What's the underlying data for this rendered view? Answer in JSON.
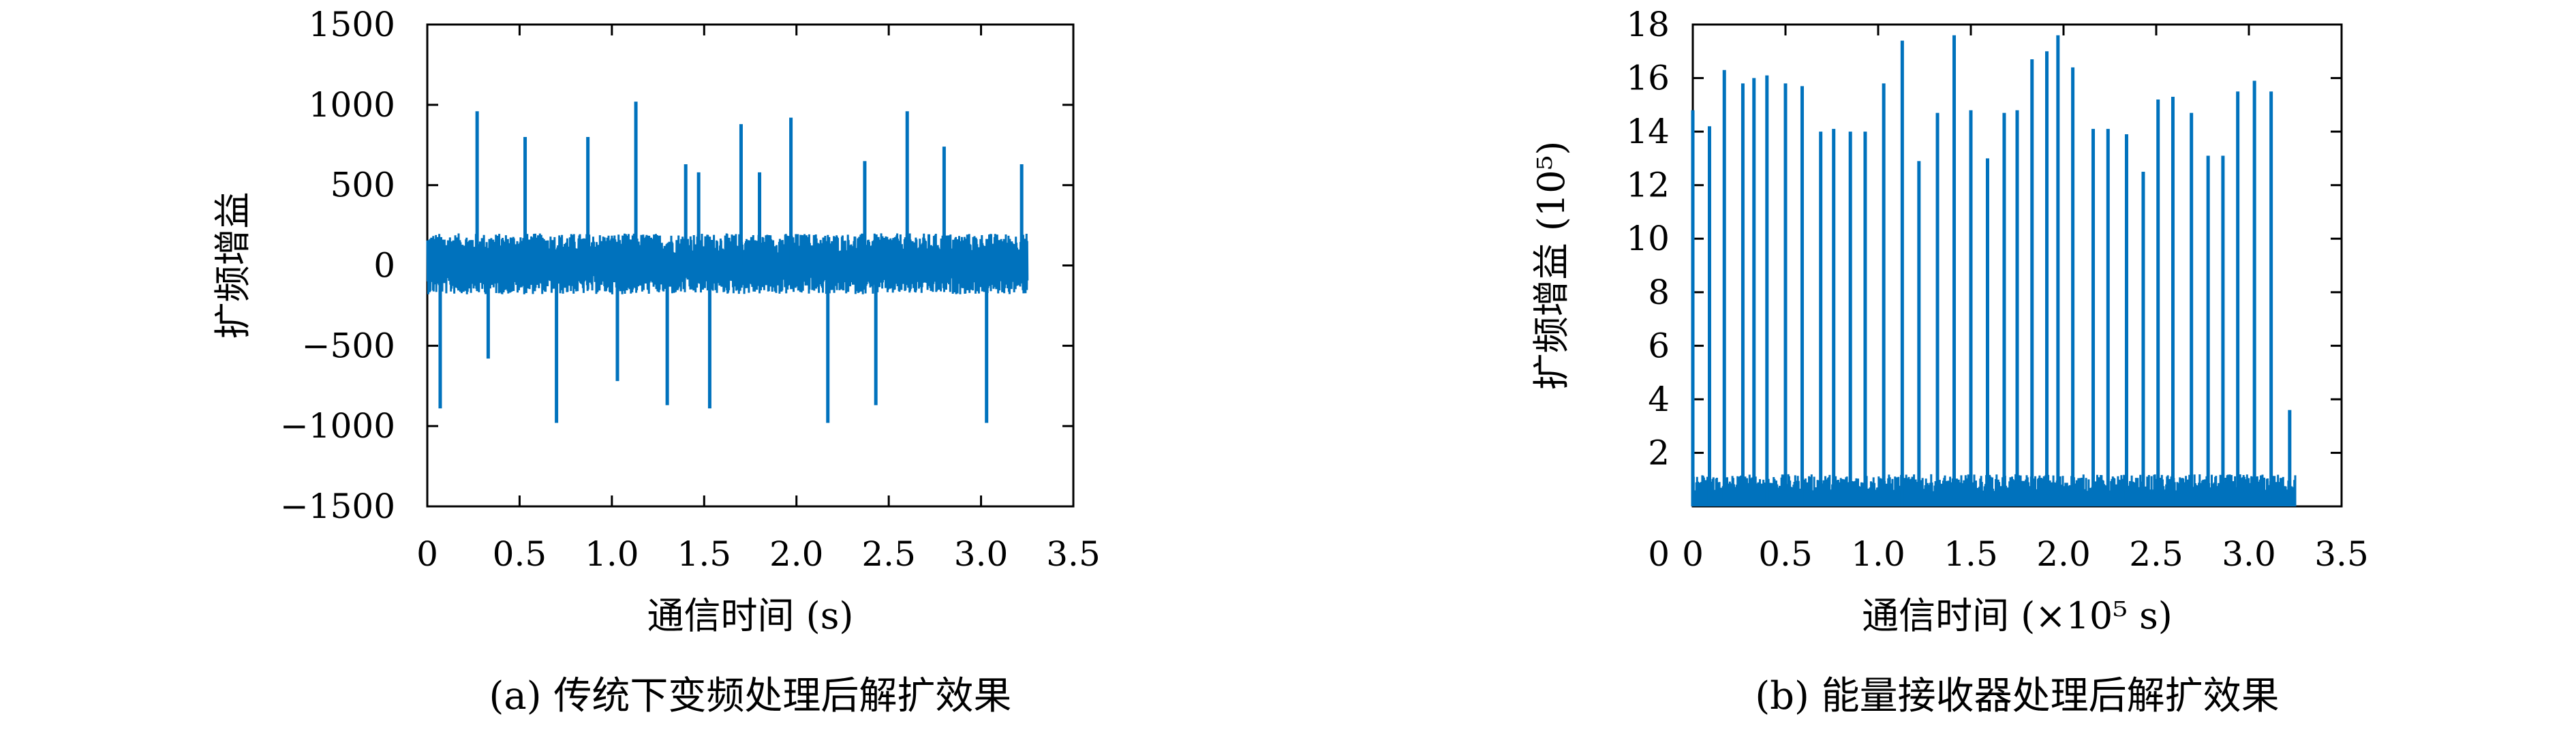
{
  "chart_data": [
    {
      "type": "line",
      "caption": "(a) 传统下变频处理后解扩效果",
      "xlabel": "通信时间 (s)",
      "ylabel": "扩频增益",
      "xlim": [
        0,
        3.5
      ],
      "ylim": [
        -1500,
        1500
      ],
      "xticks": [
        "0",
        "0.5",
        "1.0",
        "1.5",
        "2.0",
        "2.5",
        "3.0",
        "3.5"
      ],
      "yticks": [
        "1500",
        "1000",
        "500",
        "0",
        "−500",
        "−1000",
        "−1500"
      ],
      "series": [
        {
          "color": "#0072bd",
          "noise_band": [
            -180,
            200
          ],
          "x_range": [
            0,
            3.25
          ],
          "spikes": {
            "x": [
              0.07,
              0.27,
              0.33,
              0.53,
              0.7,
              0.87,
              1.03,
              1.13,
              1.3,
              1.4,
              1.47,
              1.53,
              1.7,
              1.8,
              1.97,
              2.17,
              2.37,
              2.43,
              2.6,
              2.8,
              3.03,
              3.22
            ],
            "y": [
              -890,
              960,
              -580,
              800,
              -980,
              800,
              -720,
              1020,
              -870,
              630,
              580,
              -890,
              880,
              580,
              920,
              -980,
              650,
              -870,
              960,
              740,
              -980,
              630
            ]
          }
        }
      ]
    },
    {
      "type": "line",
      "caption": "(b) 能量接收器处理后解扩效果",
      "xlabel": "通信时间 (×10⁵ s)",
      "ylabel": "扩频增益 (10⁵)",
      "xlim": [
        0,
        3.5
      ],
      "ylim": [
        0,
        18
      ],
      "xticks": [
        "0",
        "0.5",
        "1.0",
        "1.5",
        "2.0",
        "2.5",
        "3.0",
        "3.5"
      ],
      "yticks": [
        "18",
        "16",
        "14",
        "12",
        "10",
        "8",
        "6",
        "4",
        "2"
      ],
      "series": [
        {
          "color": "#0072bd",
          "noise_band": [
            0,
            1.2
          ],
          "x_range": [
            0,
            3.25
          ],
          "spikes": {
            "x": [
              0.0,
              0.09,
              0.17,
              0.27,
              0.33,
              0.4,
              0.5,
              0.59,
              0.69,
              0.76,
              0.85,
              0.93,
              1.03,
              1.13,
              1.22,
              1.32,
              1.41,
              1.5,
              1.59,
              1.68,
              1.75,
              1.83,
              1.91,
              1.97,
              2.05,
              2.16,
              2.24,
              2.34,
              2.43,
              2.51,
              2.59,
              2.69,
              2.78,
              2.86,
              2.94,
              3.03,
              3.12,
              3.22
            ],
            "y": [
              14.8,
              14.2,
              16.3,
              15.8,
              16.0,
              16.1,
              15.8,
              15.7,
              14.0,
              14.1,
              14.0,
              14.0,
              15.8,
              17.4,
              12.9,
              14.7,
              17.6,
              14.8,
              13.0,
              14.7,
              14.8,
              16.7,
              17.0,
              17.6,
              16.4,
              14.1,
              14.1,
              13.9,
              12.5,
              15.2,
              15.3,
              14.7,
              13.1,
              13.1,
              15.5,
              15.9,
              15.5,
              3.6
            ]
          }
        }
      ]
    }
  ]
}
